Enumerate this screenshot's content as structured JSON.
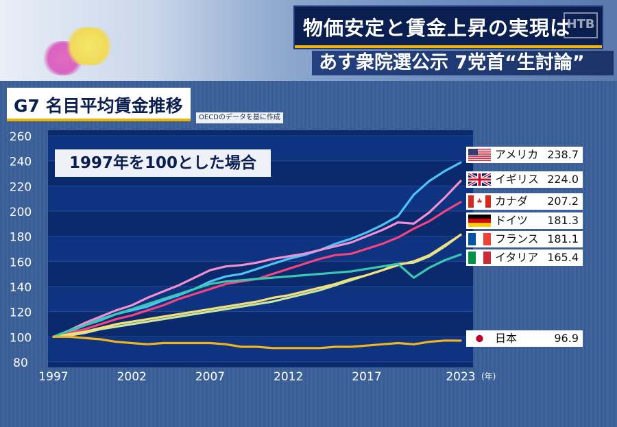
{
  "header": {
    "headline": "物価安定と賃金上昇の実現は",
    "subheadline": "あす衆院選公示 7党首“生討論”",
    "logo": "HTB"
  },
  "chart_title": "G7 名目平均賃金推移",
  "source_note": "OECDのデータを基に作成",
  "base_note": "1997年を100とした場合",
  "chart_data": {
    "type": "line",
    "title": "G7 名目平均賃金推移",
    "xlabel": "",
    "ylabel": "",
    "xlim": [
      1997,
      2023
    ],
    "ylim": [
      80,
      260
    ],
    "x_ticks": [
      1997,
      2002,
      2007,
      2012,
      2017,
      2023
    ],
    "x_tick_labels": [
      "1997",
      "2002",
      "2007",
      "2012",
      "2017",
      "2023"
    ],
    "x_unit": "(年)",
    "y_ticks": [
      80,
      100,
      120,
      140,
      160,
      180,
      200,
      220,
      240,
      260
    ],
    "legend_position": "right",
    "x": [
      1997,
      1998,
      1999,
      2000,
      2001,
      2002,
      2003,
      2004,
      2005,
      2006,
      2007,
      2008,
      2009,
      2010,
      2011,
      2012,
      2013,
      2014,
      2015,
      2016,
      2017,
      2018,
      2019,
      2020,
      2021,
      2022,
      2023
    ],
    "series": [
      {
        "name": "アメリカ",
        "label_value": "238.7",
        "color": "#4fc3f7",
        "values": [
          100,
          104,
          109,
          114,
          118,
          121,
          124,
          129,
          133,
          138,
          144,
          148,
          150,
          154,
          158,
          162,
          165,
          169,
          174,
          178,
          183,
          189,
          196,
          213,
          224,
          232,
          238.7
        ]
      },
      {
        "name": "イギリス",
        "label_value": "224.0",
        "color": "#f48fd0",
        "values": [
          100,
          105,
          111,
          116,
          121,
          125,
          131,
          136,
          141,
          147,
          153,
          156,
          157,
          159,
          162,
          164,
          166,
          169,
          172,
          175,
          180,
          185,
          191,
          190,
          199,
          211,
          224.0
        ]
      },
      {
        "name": "カナダ",
        "label_value": "207.2",
        "color": "#f4437f",
        "values": [
          100,
          103,
          106,
          110,
          114,
          117,
          121,
          125,
          130,
          134,
          138,
          142,
          144,
          146,
          150,
          154,
          158,
          162,
          165,
          166,
          170,
          174,
          179,
          186,
          192,
          200,
          207.2
        ]
      },
      {
        "name": "ドイツ",
        "label_value": "181.3",
        "color": "#c8e6a0",
        "values": [
          100,
          101,
          103,
          106,
          108,
          110,
          112,
          114,
          116,
          118,
          120,
          122,
          124,
          126,
          128,
          131,
          134,
          137,
          141,
          145,
          149,
          153,
          158,
          159,
          164,
          172,
          181.3
        ]
      },
      {
        "name": "フランス",
        "label_value": "181.1",
        "color": "#f3e07a",
        "values": [
          100,
          102,
          104,
          107,
          110,
          112,
          114,
          116,
          118,
          120,
          122,
          124,
          126,
          128,
          131,
          133,
          136,
          139,
          142,
          146,
          149,
          153,
          157,
          160,
          165,
          173,
          181.1
        ]
      },
      {
        "name": "イタリア",
        "label_value": "165.4",
        "color": "#38c9b0",
        "values": [
          100,
          105,
          109,
          113,
          118,
          122,
          126,
          130,
          134,
          138,
          142,
          144,
          145,
          146,
          147,
          148,
          149,
          150,
          151,
          152,
          154,
          156,
          158,
          147,
          155,
          161,
          165.4
        ]
      },
      {
        "name": "日本",
        "label_value": "96.9",
        "color": "#f2b51c",
        "values": [
          100,
          100,
          99,
          98,
          96,
          95,
          94,
          95,
          95,
          95,
          95,
          94,
          92,
          92,
          91,
          91,
          91,
          91,
          92,
          92,
          93,
          94,
          95,
          94,
          96,
          97,
          96.9
        ]
      }
    ]
  }
}
